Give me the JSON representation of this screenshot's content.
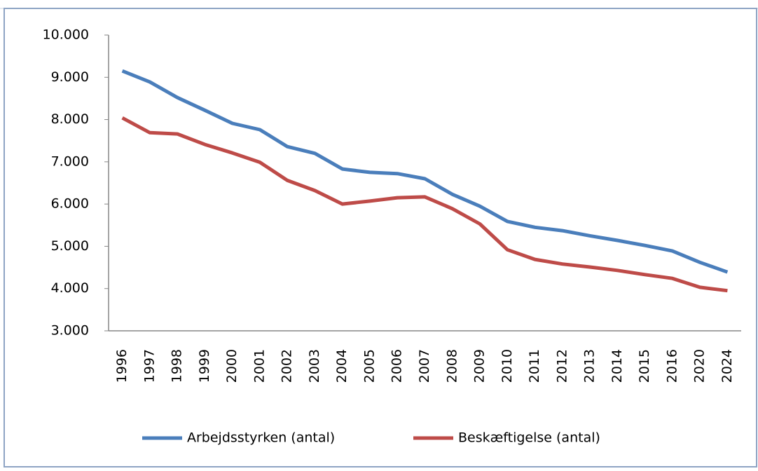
{
  "chart_data": {
    "type": "line",
    "categories": [
      "1996",
      "1997",
      "1998",
      "1999",
      "2000",
      "2001",
      "2002",
      "2003",
      "2004",
      "2005",
      "2006",
      "2007",
      "2008",
      "2009",
      "2010",
      "2011",
      "2012",
      "2013",
      "2014",
      "2015",
      "2016",
      "2020",
      "2024"
    ],
    "series": [
      {
        "name": "Arbejdsstyrken (antal)",
        "color": "#4a7ebb",
        "values": [
          9150,
          8890,
          8520,
          8220,
          7910,
          7760,
          7360,
          7200,
          6830,
          6750,
          6720,
          6600,
          6230,
          5950,
          5590,
          5450,
          5370,
          5250,
          5140,
          5020,
          4890,
          4620,
          4390
        ]
      },
      {
        "name": "Beskæftigelse (antal)",
        "color": "#be4b48",
        "values": [
          8040,
          7690,
          7660,
          7410,
          7210,
          6990,
          6560,
          6320,
          6000,
          6070,
          6150,
          6170,
          5890,
          5530,
          4920,
          4690,
          4580,
          4510,
          4430,
          4330,
          4240,
          4030,
          3950
        ]
      }
    ],
    "ylim": [
      3000,
      10000
    ],
    "yticks": [
      {
        "value": 3000,
        "label": "3.000"
      },
      {
        "value": 4000,
        "label": "4.000"
      },
      {
        "value": 5000,
        "label": "5.000"
      },
      {
        "value": 6000,
        "label": "6.000"
      },
      {
        "value": 7000,
        "label": "7.000"
      },
      {
        "value": 8000,
        "label": "8.000"
      },
      {
        "value": 9000,
        "label": "9.000"
      },
      {
        "value": 10000,
        "label": "10.000"
      }
    ],
    "grid": false,
    "legend": "bottom"
  }
}
